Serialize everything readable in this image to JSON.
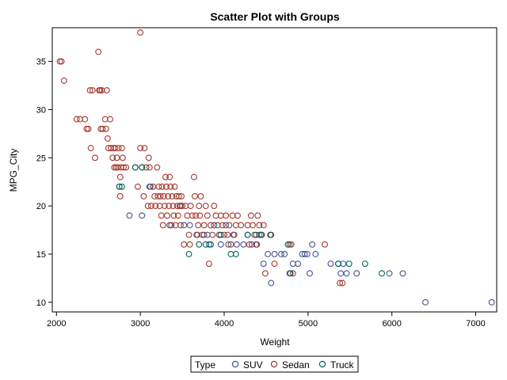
{
  "chart_data": {
    "type": "scatter",
    "title": "Scatter Plot with Groups",
    "xlabel": "Weight",
    "ylabel": "MPG_City",
    "xlim": [
      1950,
      7250
    ],
    "ylim": [
      9,
      38.5
    ],
    "xticks": [
      2000,
      3000,
      4000,
      5000,
      6000,
      7000
    ],
    "yticks": [
      10,
      15,
      20,
      25,
      30,
      35
    ],
    "grid": false,
    "legend": {
      "title": "Type",
      "position": "bottom"
    },
    "series": [
      {
        "name": "SUV",
        "color": "#445694",
        "points": [
          [
            2870,
            19
          ],
          [
            3020,
            19
          ],
          [
            3110,
            22
          ],
          [
            3120,
            22
          ],
          [
            3350,
            18
          ],
          [
            3480,
            20
          ],
          [
            3520,
            18
          ],
          [
            3590,
            18
          ],
          [
            3680,
            17
          ],
          [
            3760,
            17
          ],
          [
            3800,
            17
          ],
          [
            3820,
            16
          ],
          [
            3880,
            18
          ],
          [
            3940,
            17
          ],
          [
            3960,
            16
          ],
          [
            4020,
            18
          ],
          [
            4050,
            16
          ],
          [
            4110,
            17
          ],
          [
            4150,
            16
          ],
          [
            4230,
            16
          ],
          [
            4280,
            17
          ],
          [
            4330,
            16
          ],
          [
            4390,
            16
          ],
          [
            4420,
            17
          ],
          [
            4470,
            14
          ],
          [
            4520,
            15
          ],
          [
            4560,
            12
          ],
          [
            4600,
            15
          ],
          [
            4680,
            15
          ],
          [
            4720,
            15
          ],
          [
            4780,
            13
          ],
          [
            4820,
            14
          ],
          [
            4880,
            14
          ],
          [
            4930,
            15
          ],
          [
            4960,
            15
          ],
          [
            4990,
            15
          ],
          [
            5020,
            13
          ],
          [
            5050,
            16
          ],
          [
            5090,
            15
          ],
          [
            5270,
            14
          ],
          [
            5360,
            14
          ],
          [
            5390,
            13
          ],
          [
            5420,
            14
          ],
          [
            5460,
            13
          ],
          [
            5580,
            13
          ],
          [
            5970,
            13
          ],
          [
            6130,
            13
          ],
          [
            6400,
            10
          ],
          [
            7190,
            10
          ]
        ]
      },
      {
        "name": "Sedan",
        "color": "#A23A2E",
        "points": [
          [
            2040,
            35
          ],
          [
            2060,
            35
          ],
          [
            2090,
            33
          ],
          [
            2240,
            29
          ],
          [
            2280,
            29
          ],
          [
            2340,
            29
          ],
          [
            2360,
            28
          ],
          [
            2380,
            28
          ],
          [
            2400,
            32
          ],
          [
            2410,
            26
          ],
          [
            2430,
            32
          ],
          [
            2460,
            25
          ],
          [
            2500,
            36
          ],
          [
            2510,
            32
          ],
          [
            2520,
            32
          ],
          [
            2530,
            28
          ],
          [
            2540,
            32
          ],
          [
            2550,
            28
          ],
          [
            2580,
            29
          ],
          [
            2590,
            28
          ],
          [
            2600,
            32
          ],
          [
            2610,
            27
          ],
          [
            2620,
            26
          ],
          [
            2640,
            29
          ],
          [
            2650,
            26
          ],
          [
            2670,
            25
          ],
          [
            2680,
            26
          ],
          [
            2690,
            24
          ],
          [
            2700,
            26
          ],
          [
            2710,
            24
          ],
          [
            2720,
            25
          ],
          [
            2730,
            24
          ],
          [
            2740,
            26
          ],
          [
            2750,
            22
          ],
          [
            2760,
            23
          ],
          [
            2760,
            21
          ],
          [
            2770,
            24
          ],
          [
            2780,
            26
          ],
          [
            2790,
            25
          ],
          [
            2800,
            24
          ],
          [
            2830,
            24
          ],
          [
            2940,
            24
          ],
          [
            2970,
            22
          ],
          [
            3000,
            26
          ],
          [
            3000,
            38
          ],
          [
            3020,
            24
          ],
          [
            3040,
            21
          ],
          [
            3050,
            26
          ],
          [
            3070,
            24
          ],
          [
            3090,
            20
          ],
          [
            3100,
            25
          ],
          [
            3110,
            24
          ],
          [
            3130,
            20
          ],
          [
            3150,
            22
          ],
          [
            3170,
            21
          ],
          [
            3180,
            20
          ],
          [
            3200,
            24
          ],
          [
            3210,
            21
          ],
          [
            3220,
            22
          ],
          [
            3230,
            20
          ],
          [
            3240,
            21
          ],
          [
            3250,
            19
          ],
          [
            3260,
            22
          ],
          [
            3270,
            18
          ],
          [
            3280,
            21
          ],
          [
            3290,
            20
          ],
          [
            3300,
            23
          ],
          [
            3310,
            22
          ],
          [
            3320,
            19
          ],
          [
            3330,
            21
          ],
          [
            3340,
            20
          ],
          [
            3350,
            23
          ],
          [
            3360,
            22
          ],
          [
            3370,
            18
          ],
          [
            3380,
            21
          ],
          [
            3390,
            20
          ],
          [
            3400,
            19
          ],
          [
            3410,
            22
          ],
          [
            3420,
            18
          ],
          [
            3430,
            21
          ],
          [
            3440,
            20
          ],
          [
            3450,
            19
          ],
          [
            3460,
            21
          ],
          [
            3470,
            20
          ],
          [
            3480,
            18
          ],
          [
            3490,
            21
          ],
          [
            3500,
            20
          ],
          [
            3520,
            16
          ],
          [
            3540,
            20
          ],
          [
            3560,
            19
          ],
          [
            3580,
            17
          ],
          [
            3590,
            16
          ],
          [
            3600,
            20
          ],
          [
            3620,
            19
          ],
          [
            3640,
            23
          ],
          [
            3650,
            21
          ],
          [
            3660,
            19
          ],
          [
            3670,
            17
          ],
          [
            3690,
            18
          ],
          [
            3700,
            20
          ],
          [
            3710,
            19
          ],
          [
            3720,
            21
          ],
          [
            3740,
            17
          ],
          [
            3760,
            18
          ],
          [
            3780,
            20
          ],
          [
            3800,
            19
          ],
          [
            3820,
            14
          ],
          [
            3840,
            18
          ],
          [
            3860,
            17
          ],
          [
            3880,
            20
          ],
          [
            3900,
            19
          ],
          [
            3920,
            18
          ],
          [
            3940,
            17
          ],
          [
            3960,
            19
          ],
          [
            3980,
            18
          ],
          [
            4000,
            17
          ],
          [
            4020,
            19
          ],
          [
            4040,
            17
          ],
          [
            4060,
            18
          ],
          [
            4080,
            16
          ],
          [
            4100,
            19
          ],
          [
            4120,
            17
          ],
          [
            4140,
            18
          ],
          [
            4160,
            19
          ],
          [
            4200,
            18
          ],
          [
            4280,
            18
          ],
          [
            4300,
            16
          ],
          [
            4320,
            19
          ],
          [
            4340,
            18
          ],
          [
            4360,
            17
          ],
          [
            4380,
            16
          ],
          [
            4400,
            19
          ],
          [
            4420,
            18
          ],
          [
            4450,
            17
          ],
          [
            4470,
            18
          ],
          [
            4490,
            13
          ],
          [
            4560,
            17
          ],
          [
            4600,
            14
          ],
          [
            4780,
            16
          ],
          [
            4800,
            16
          ],
          [
            4820,
            13
          ],
          [
            5200,
            16
          ],
          [
            5380,
            12
          ],
          [
            5410,
            12
          ]
        ]
      },
      {
        "name": "Truck",
        "color": "#01665E",
        "points": [
          [
            2750,
            22
          ],
          [
            2780,
            22
          ],
          [
            2940,
            24
          ],
          [
            3020,
            24
          ],
          [
            3580,
            15
          ],
          [
            3700,
            16
          ],
          [
            3780,
            16
          ],
          [
            3840,
            16
          ],
          [
            3960,
            17
          ],
          [
            4080,
            15
          ],
          [
            4140,
            15
          ],
          [
            4280,
            17
          ],
          [
            4380,
            17
          ],
          [
            4440,
            17
          ],
          [
            4550,
            17
          ],
          [
            4760,
            16
          ],
          [
            4790,
            13
          ],
          [
            5360,
            14
          ],
          [
            5490,
            14
          ],
          [
            5680,
            14
          ],
          [
            5880,
            13
          ]
        ]
      }
    ]
  }
}
